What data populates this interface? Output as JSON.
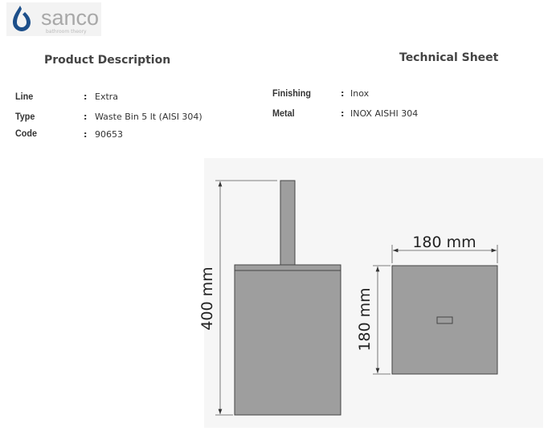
{
  "logo": {
    "brand": "sanco",
    "tagline": "bathroom theory",
    "color": "#1d4f8a"
  },
  "headings": {
    "left": "Product Description",
    "right": "Technical Sheet"
  },
  "left_fields": [
    {
      "label": "Line",
      "value": "Extra"
    },
    {
      "label": "Type",
      "value": "Waste Bin 5 lt (AISI 304)"
    },
    {
      "label": "Code",
      "value": "90653"
    }
  ],
  "right_fields": [
    {
      "label": "Finishing",
      "value": "Inox"
    },
    {
      "label": "Metal",
      "value": "INOX AISHI 304"
    }
  ],
  "separator": ":",
  "drawing": {
    "height_label": "400 mm",
    "width_label": "180 mm",
    "depth_label": "180 mm",
    "fill": "#9e9e9e"
  }
}
